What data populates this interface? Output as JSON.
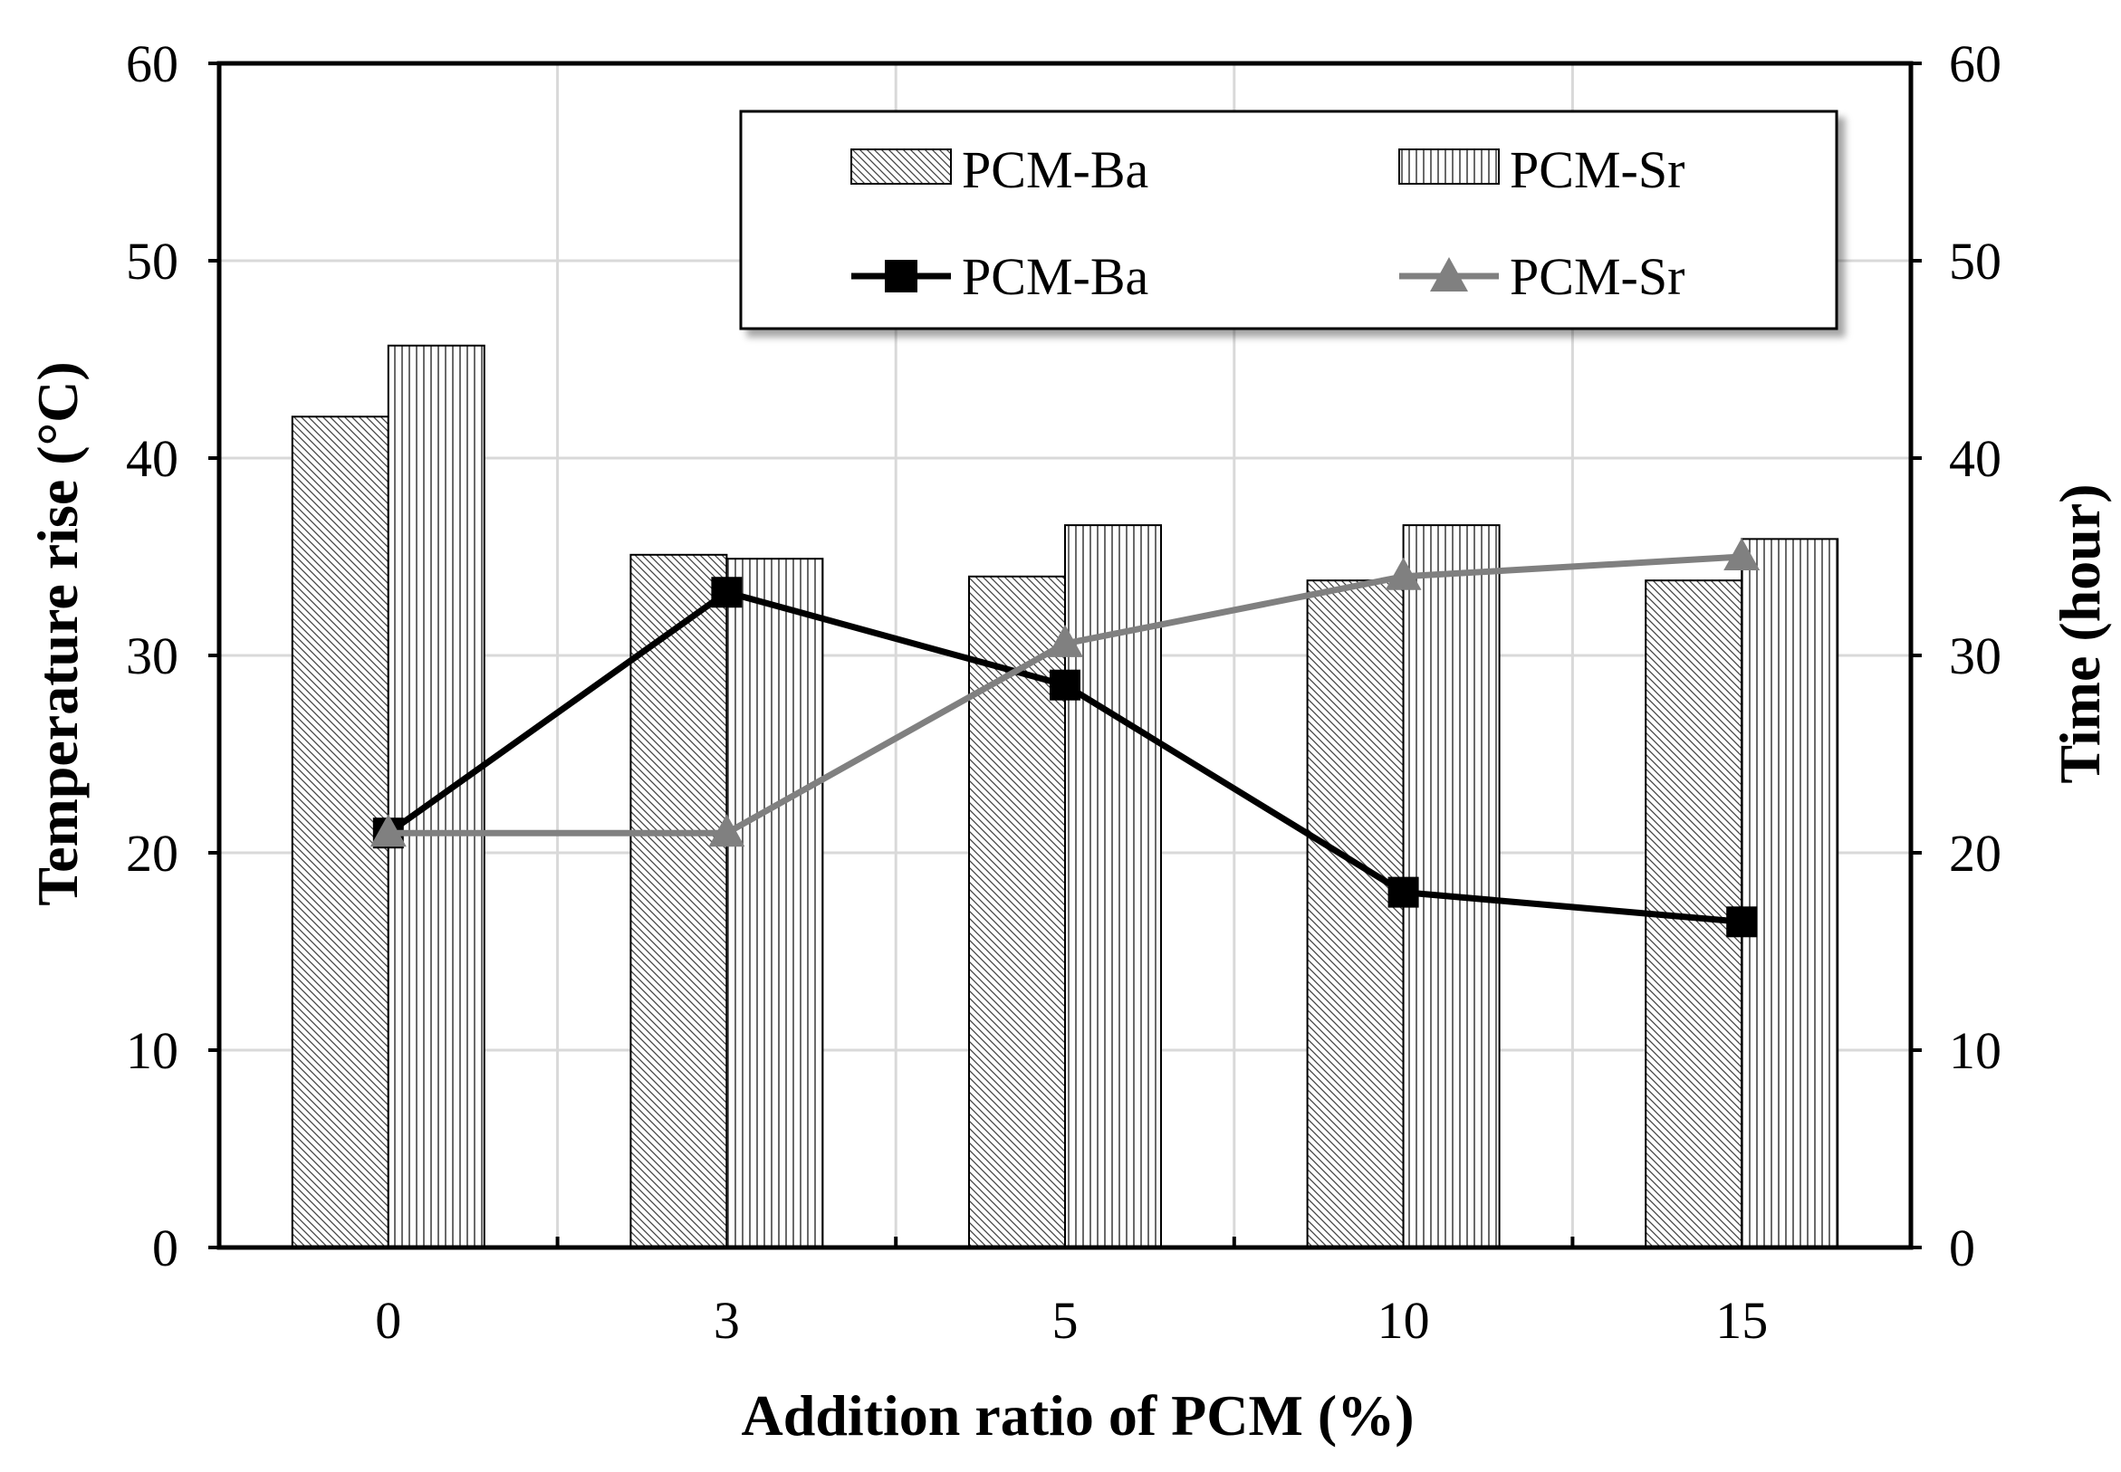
{
  "chart_data": {
    "type": "bar+line",
    "categories": [
      "0",
      "3",
      "5",
      "10",
      "15"
    ],
    "xlabel": "Addition ratio of PCM (%)",
    "ylabel_left": "Temperature rise (°C)",
    "ylabel_right": "Time (hour)",
    "ylim_left": [
      0,
      60
    ],
    "ylim_right": [
      0,
      60
    ],
    "yticks_left": [
      "0",
      "10",
      "20",
      "30",
      "40",
      "50",
      "60"
    ],
    "yticks_right": [
      "0",
      "10",
      "20",
      "30",
      "40",
      "50",
      "60"
    ],
    "grid": true,
    "legend_position": "top-right",
    "bar_series": [
      {
        "name": "PCM-Ba",
        "axis": "left",
        "pattern": "diagonal-hatch",
        "values": [
          42.1,
          35.1,
          34.0,
          33.8,
          33.8
        ]
      },
      {
        "name": "PCM-Sr",
        "axis": "left",
        "pattern": "vertical-hatch",
        "values": [
          45.7,
          34.9,
          36.6,
          36.6,
          35.9
        ]
      }
    ],
    "line_series": [
      {
        "name": "PCM-Ba",
        "axis": "right",
        "marker": "square",
        "color": "#000000",
        "values": [
          21.0,
          33.2,
          28.5,
          18.0,
          16.5
        ]
      },
      {
        "name": "PCM-Sr",
        "axis": "right",
        "marker": "triangle",
        "color": "#808080",
        "values": [
          21.0,
          21.0,
          30.6,
          34.0,
          35.0
        ]
      }
    ]
  }
}
